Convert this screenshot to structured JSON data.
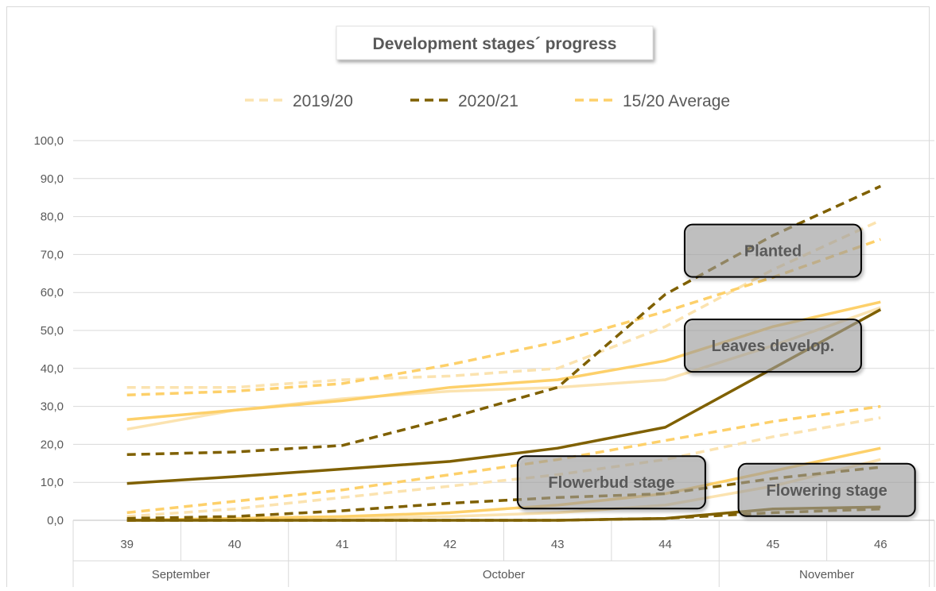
{
  "chart_data": {
    "type": "line",
    "title": "Development stages´ progress",
    "xlabel": "",
    "ylabel": "",
    "ylim": [
      0,
      100
    ],
    "y_ticks": [
      "0,0",
      "10,0",
      "20,0",
      "30,0",
      "40,0",
      "50,0",
      "60,0",
      "70,0",
      "80,0",
      "90,0",
      "100,0"
    ],
    "x": [
      "39",
      "40",
      "41",
      "42",
      "43",
      "44",
      "45",
      "46"
    ],
    "months": [
      {
        "label": "September",
        "weeks": [
          "39",
          "40"
        ]
      },
      {
        "label": "October",
        "weeks": [
          "41",
          "42",
          "43",
          "44"
        ]
      },
      {
        "label": "November",
        "weeks": [
          "45",
          "46"
        ]
      }
    ],
    "grid": true,
    "legend_position": "top",
    "legend": [
      {
        "label": "2019/20",
        "color": "#fbe3b0",
        "dash": "dashed"
      },
      {
        "label": "2020/21",
        "color": "#7f6000",
        "dash": "dashed"
      },
      {
        "label": "15/20 Average",
        "color": "#fdd06a",
        "dash": "dashed"
      }
    ],
    "series": [
      {
        "stage": "Planted",
        "season": "2019/20",
        "style": "dashed",
        "color": "#fbe3b0",
        "values": [
          35,
          35,
          37,
          38,
          40,
          51,
          66,
          79
        ]
      },
      {
        "stage": "Planted",
        "season": "15/20 Average",
        "style": "dashed",
        "color": "#fdd06a",
        "values": [
          33,
          34,
          36,
          41,
          47,
          55,
          64,
          74
        ]
      },
      {
        "stage": "Planted",
        "season": "2020/21",
        "style": "dashed",
        "color": "#7f6000",
        "values": [
          17.3,
          18,
          19.7,
          27,
          35,
          59.5,
          75,
          88
        ]
      },
      {
        "stage": "Leaves develop.",
        "season": "2019/20",
        "style": "solid",
        "color": "#fbe3b0",
        "values": [
          24,
          29,
          32,
          34,
          35,
          37,
          46,
          56
        ]
      },
      {
        "stage": "Leaves develop.",
        "season": "15/20 Average",
        "style": "solid",
        "color": "#fdd06a",
        "values": [
          26.5,
          29,
          31.5,
          35,
          37,
          42,
          51,
          57.5
        ]
      },
      {
        "stage": "Leaves develop.",
        "season": "2020/21",
        "style": "solid",
        "color": "#7f6000",
        "values": [
          9.7,
          11.5,
          13.5,
          15.5,
          19,
          24.5,
          40,
          55.5
        ]
      },
      {
        "stage": "Flowerbud stage",
        "season": "2019/20",
        "style": "dashed",
        "color": "#fbe3b0",
        "values": [
          1,
          3,
          6,
          9,
          12,
          16,
          22,
          27
        ]
      },
      {
        "stage": "Flowerbud stage",
        "season": "15/20 Average",
        "style": "dashed",
        "color": "#fdd06a",
        "values": [
          2,
          5,
          8,
          12,
          16,
          21,
          26,
          30
        ]
      },
      {
        "stage": "Flowerbud stage",
        "season": "2020/21",
        "style": "dashed",
        "color": "#7f6000",
        "values": [
          0.5,
          1,
          2.5,
          4.5,
          6,
          7,
          11,
          14
        ]
      },
      {
        "stage": "Flowering stage",
        "season": "2019/20",
        "style": "solid",
        "color": "#fbe3b0",
        "values": [
          0,
          0.2,
          0.5,
          1,
          2,
          4,
          9,
          16
        ]
      },
      {
        "stage": "Flowering stage",
        "season": "15/20 Average",
        "style": "solid",
        "color": "#fdd06a",
        "values": [
          0,
          0.5,
          1,
          2,
          4,
          7,
          13,
          19
        ]
      },
      {
        "stage": "Flowering stage",
        "season": "2020/21",
        "style": "solid",
        "color": "#7f6000",
        "values": [
          0,
          0,
          0,
          0,
          0,
          0.5,
          3,
          3.5
        ]
      },
      {
        "stage": "Flowering stage",
        "season": "2020/21",
        "style": "dashed",
        "color": "#7f6000",
        "values": [
          0,
          0,
          0,
          0,
          0,
          0.5,
          2,
          3
        ]
      }
    ],
    "annotations": [
      {
        "text": "Planted",
        "week": "45",
        "y": 71
      },
      {
        "text": "Leaves develop.",
        "week": "45",
        "y": 46
      },
      {
        "text": "Flowerbud stage",
        "week": "43.5",
        "y": 10
      },
      {
        "text": "Flowering stage",
        "week": "45.5",
        "y": 8
      }
    ]
  }
}
